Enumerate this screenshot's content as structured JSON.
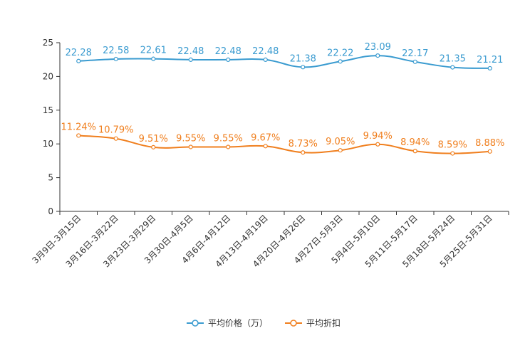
{
  "chart_data": {
    "type": "line",
    "title": "",
    "xlabel": "",
    "ylabel": "",
    "ylim": [
      0,
      25
    ],
    "yticks": [
      0,
      5,
      10,
      15,
      20,
      25
    ],
    "grid": false,
    "legend_position": "bottom",
    "categories": [
      "3月9日-3月15日",
      "3月16日-3月22日",
      "3月23日-3月29日",
      "3月30日-4月5日",
      "4月6日-4月12日",
      "4月13日-4月19日",
      "4月20日-4月26日",
      "4月27日-5月3日",
      "5月4日-5月10日",
      "5月11日-5月17日",
      "5月18日-5月24日",
      "5月25日-5月31日"
    ],
    "series": [
      {
        "name": "平均价格（万）",
        "color": "#3a9bd0",
        "values": [
          22.28,
          22.58,
          22.61,
          22.48,
          22.48,
          22.48,
          21.38,
          22.22,
          23.09,
          22.17,
          21.35,
          21.21
        ],
        "labels": [
          "22.28",
          "22.58",
          "22.61",
          "22.48",
          "22.48",
          "22.48",
          "21.38",
          "22.22",
          "23.09",
          "22.17",
          "21.35",
          "21.21"
        ]
      },
      {
        "name": "平均折扣",
        "color": "#f07f1e",
        "values": [
          11.24,
          10.79,
          9.51,
          9.55,
          9.55,
          9.67,
          8.73,
          9.05,
          9.94,
          8.94,
          8.59,
          8.88
        ],
        "labels": [
          "11.24%",
          "10.79%",
          "9.51%",
          "9.55%",
          "9.55%",
          "9.67%",
          "8.73%",
          "9.05%",
          "9.94%",
          "8.94%",
          "8.59%",
          "8.88%"
        ]
      }
    ]
  }
}
